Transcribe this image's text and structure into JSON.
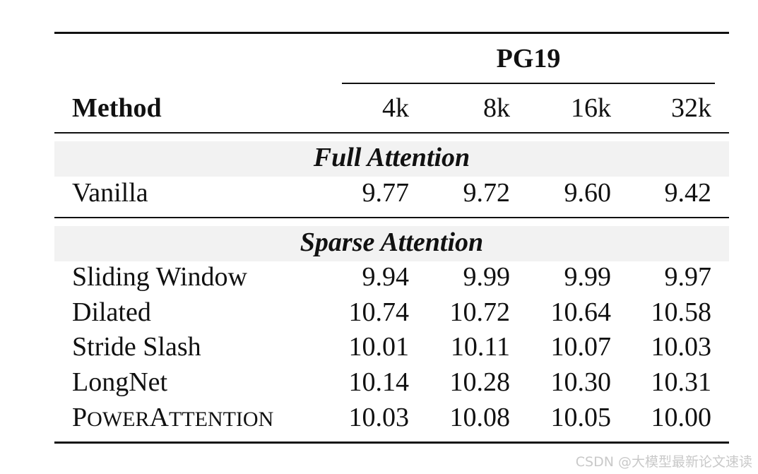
{
  "table": {
    "header": {
      "method_label": "Method",
      "dataset": "PG19",
      "columns": [
        "4k",
        "8k",
        "16k",
        "32k"
      ]
    },
    "sections": [
      {
        "title": "Full Attention",
        "rows": [
          {
            "method": "Vanilla",
            "values": [
              "9.77",
              "9.72",
              "9.60",
              "9.42"
            ]
          }
        ]
      },
      {
        "title": "Sparse Attention",
        "rows": [
          {
            "method": "Sliding Window",
            "values": [
              "9.94",
              "9.99",
              "9.99",
              "9.97"
            ]
          },
          {
            "method": "Dilated",
            "values": [
              "10.74",
              "10.72",
              "10.64",
              "10.58"
            ]
          },
          {
            "method": "Stride Slash",
            "values": [
              "10.01",
              "10.11",
              "10.07",
              "10.03"
            ]
          },
          {
            "method": "LongNet",
            "values": [
              "10.14",
              "10.28",
              "10.30",
              "10.31"
            ]
          },
          {
            "method": "PowerAttention",
            "values": [
              "10.03",
              "10.08",
              "10.05",
              "10.00"
            ]
          }
        ]
      }
    ]
  },
  "watermark": "CSDN @大模型最新论文速读"
}
